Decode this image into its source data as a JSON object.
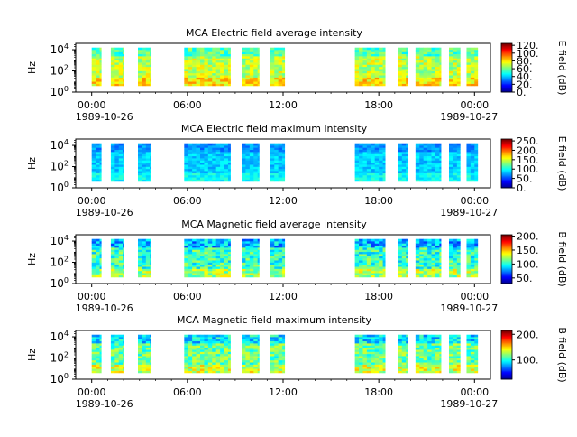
{
  "chart_data": [
    {
      "type": "heatmap",
      "title": "MCA  Electric field average intensity",
      "ylabel": "Hz",
      "colorbar_label": "E field (dB)",
      "colorbar_ticks": [
        "0.",
        "20.",
        "40.",
        "60.",
        "80.",
        "100.",
        "120."
      ],
      "colorbar_range": [
        0,
        125
      ],
      "x_ticks": [
        "00:00",
        "06:00",
        "12:00",
        "18:00",
        "00:00"
      ],
      "x_tick_hours": [
        0,
        6,
        12,
        18,
        24
      ],
      "date_start": "1989-10-26",
      "date_end": "1989-10-27",
      "xlim_hours": [
        -1,
        25
      ],
      "y_ticks": [
        "10^0",
        "10^2",
        "10^4"
      ],
      "ylim_log10": [
        0,
        4.6
      ],
      "data_segments_hours": [
        [
          0.0,
          0.6
        ],
        [
          1.2,
          2.0
        ],
        [
          2.9,
          3.7
        ],
        [
          5.8,
          8.7
        ],
        [
          9.4,
          10.5
        ],
        [
          11.2,
          12.1
        ],
        [
          16.5,
          18.4
        ],
        [
          19.2,
          19.8
        ],
        [
          20.3,
          21.9
        ],
        [
          22.4,
          23.1
        ],
        [
          23.5,
          24.2
        ]
      ],
      "level_base_db": 70,
      "level_span_db": 25
    },
    {
      "type": "heatmap",
      "title": "MCA  Electric field maximum intensity",
      "ylabel": "Hz",
      "colorbar_label": "E field (dB)",
      "colorbar_ticks": [
        "0.",
        "50.",
        "100.",
        "150.",
        "200.",
        "250."
      ],
      "colorbar_range": [
        0,
        260
      ],
      "x_ticks": [
        "00:00",
        "06:00",
        "12:00",
        "18:00",
        "00:00"
      ],
      "x_tick_hours": [
        0,
        6,
        12,
        18,
        24
      ],
      "date_start": "1989-10-26",
      "date_end": "1989-10-27",
      "xlim_hours": [
        -1,
        25
      ],
      "y_ticks": [
        "10^0",
        "10^2",
        "10^4"
      ],
      "ylim_log10": [
        0,
        4.6
      ],
      "data_segments_hours": [
        [
          0.0,
          0.6
        ],
        [
          1.2,
          2.0
        ],
        [
          2.9,
          3.7
        ],
        [
          5.8,
          8.7
        ],
        [
          9.4,
          10.5
        ],
        [
          11.2,
          12.1
        ],
        [
          16.5,
          18.4
        ],
        [
          19.2,
          19.8
        ],
        [
          20.3,
          21.9
        ],
        [
          22.4,
          23.1
        ],
        [
          23.5,
          24.2
        ]
      ],
      "level_base_db": 85,
      "level_span_db": 30
    },
    {
      "type": "heatmap",
      "title": "MCA  Magnetic field average intensity",
      "ylabel": "Hz",
      "colorbar_label": "B field (dB)",
      "colorbar_ticks": [
        "50.",
        "100.",
        "150.",
        "200."
      ],
      "colorbar_range": [
        30,
        205
      ],
      "x_ticks": [
        "00:00",
        "06:00",
        "12:00",
        "18:00",
        "00:00"
      ],
      "x_tick_hours": [
        0,
        6,
        12,
        18,
        24
      ],
      "date_start": "1989-10-26",
      "date_end": "1989-10-27",
      "xlim_hours": [
        -1,
        25
      ],
      "y_ticks": [
        "10^0",
        "10^2",
        "10^4"
      ],
      "ylim_log10": [
        0,
        4.6
      ],
      "data_segments_hours": [
        [
          0.0,
          0.6
        ],
        [
          1.2,
          2.0
        ],
        [
          2.9,
          3.7
        ],
        [
          5.8,
          8.7
        ],
        [
          9.4,
          10.5
        ],
        [
          11.2,
          12.1
        ],
        [
          16.5,
          18.4
        ],
        [
          19.2,
          19.8
        ],
        [
          20.3,
          21.9
        ],
        [
          22.4,
          23.1
        ],
        [
          23.5,
          24.2
        ]
      ],
      "level_base_db": 105,
      "level_span_db": 45
    },
    {
      "type": "heatmap",
      "title": "MCA  Magnetic field maximum intensity",
      "ylabel": "Hz",
      "colorbar_label": "B field (dB)",
      "colorbar_ticks": [
        "100.",
        "200."
      ],
      "colorbar_range": [
        25,
        215
      ],
      "x_ticks": [
        "00:00",
        "06:00",
        "12:00",
        "18:00",
        "00:00"
      ],
      "x_tick_hours": [
        0,
        6,
        12,
        18,
        24
      ],
      "date_start": "1989-10-26",
      "date_end": "1989-10-27",
      "xlim_hours": [
        -1,
        25
      ],
      "y_ticks": [
        "10^0",
        "10^2",
        "10^4"
      ],
      "ylim_log10": [
        0,
        4.6
      ],
      "data_segments_hours": [
        [
          0.0,
          0.6
        ],
        [
          1.2,
          2.0
        ],
        [
          2.9,
          3.7
        ],
        [
          5.8,
          8.7
        ],
        [
          9.4,
          10.5
        ],
        [
          11.2,
          12.1
        ],
        [
          16.5,
          18.4
        ],
        [
          19.2,
          19.8
        ],
        [
          20.3,
          21.9
        ],
        [
          22.4,
          23.1
        ],
        [
          23.5,
          24.2
        ]
      ],
      "level_base_db": 115,
      "level_span_db": 45
    }
  ]
}
